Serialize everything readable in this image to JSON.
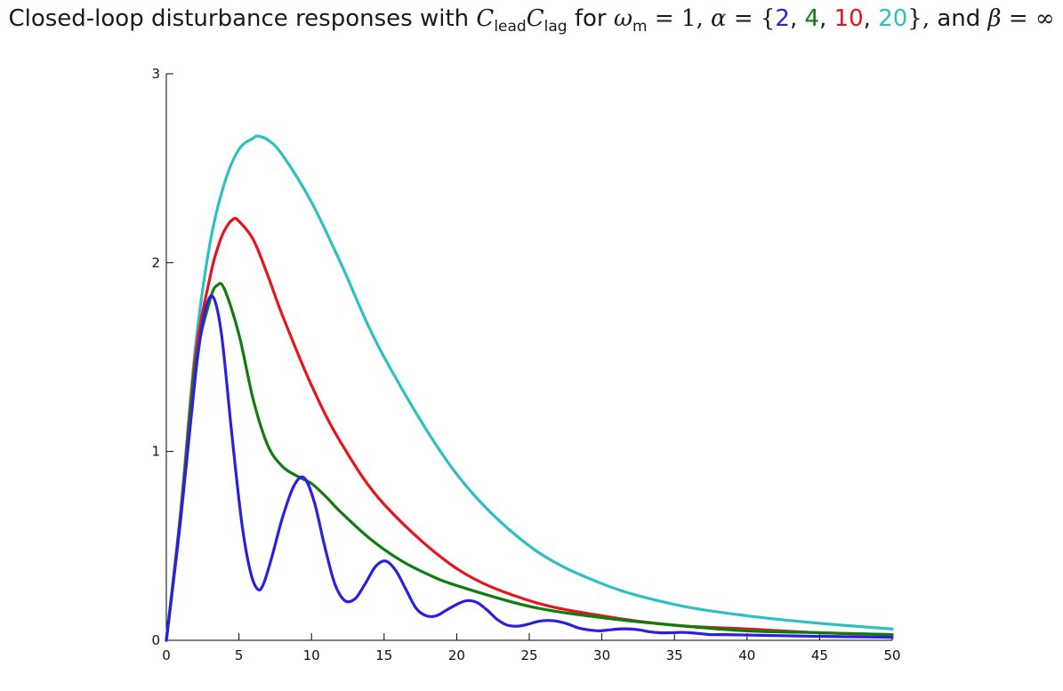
{
  "title": {
    "prefix": "Closed-loop disturbance responses with",
    "c_lead": "C",
    "c_lead_sub": "lead",
    "c_lag": "C",
    "c_lag_sub": "lag",
    "for_text": "for",
    "omega": "ω",
    "omega_sub": "m",
    "eq_one": "= 1,",
    "alpha": "α",
    "eq_brace": "= {",
    "alpha_values": [
      "2",
      "4",
      "10",
      "20"
    ],
    "close_brace": "},",
    "and_text": "and",
    "beta": "β",
    "eq_inf": "= ∞"
  },
  "colors": {
    "alpha2": "#2b1fe0",
    "alpha4": "#0e7d0e",
    "alpha10": "#e8141c",
    "alpha20": "#2ec0c0",
    "axis": "#000000"
  },
  "chart_data": {
    "type": "line",
    "xlim": [
      0,
      50
    ],
    "ylim": [
      0,
      3
    ],
    "x_ticks": [
      0,
      5,
      10,
      15,
      20,
      25,
      30,
      35,
      40,
      45,
      50
    ],
    "y_ticks": [
      0,
      1,
      2,
      3
    ],
    "grid": false,
    "xlabel": "",
    "ylabel": "",
    "series": [
      {
        "color": "#2ec0c0",
        "x": [
          0,
          1,
          2,
          3,
          4,
          5,
          6,
          6.3,
          7,
          8,
          10,
          12,
          15,
          20,
          25,
          30,
          35,
          40,
          45,
          50
        ],
        "y": [
          0,
          0.7,
          1.55,
          2.1,
          2.42,
          2.6,
          2.66,
          2.67,
          2.65,
          2.57,
          2.32,
          2.0,
          1.5,
          0.88,
          0.5,
          0.3,
          0.19,
          0.13,
          0.09,
          0.06
        ]
      },
      {
        "color": "#e8141c",
        "x": [
          0,
          1,
          2,
          3,
          3.5,
          4,
          4.6,
          5,
          6,
          7,
          8,
          10,
          12,
          15,
          20,
          25,
          30,
          35,
          40,
          45,
          50
        ],
        "y": [
          0,
          0.68,
          1.5,
          1.92,
          2.07,
          2.17,
          2.23,
          2.22,
          2.12,
          1.93,
          1.72,
          1.35,
          1.05,
          0.72,
          0.38,
          0.21,
          0.13,
          0.08,
          0.06,
          0.04,
          0.03
        ]
      },
      {
        "color": "#0e7d0e",
        "x": [
          0,
          1,
          2,
          3,
          3.5,
          4,
          5,
          6,
          7,
          8,
          9,
          10,
          11,
          12,
          14,
          16,
          18,
          20,
          25,
          30,
          35,
          40,
          45,
          50
        ],
        "y": [
          0,
          0.66,
          1.45,
          1.8,
          1.88,
          1.86,
          1.62,
          1.27,
          1.03,
          0.92,
          0.87,
          0.83,
          0.76,
          0.68,
          0.54,
          0.43,
          0.35,
          0.29,
          0.18,
          0.12,
          0.08,
          0.05,
          0.04,
          0.03
        ]
      },
      {
        "color": "#2b1fe0",
        "x": [
          0,
          1,
          2,
          2.6,
          3.2,
          3.8,
          4.5,
          5.2,
          5.8,
          6.3,
          6.7,
          7.3,
          8.0,
          8.8,
          9.5,
          10.2,
          10.9,
          11.6,
          12.3,
          13.0,
          13.7,
          14.4,
          15.1,
          15.8,
          16.5,
          17.2,
          17.9,
          18.6,
          19.3,
          20.0,
          20.7,
          21.4,
          22.1,
          22.8,
          23.5,
          24.2,
          24.9,
          25.6,
          26.3,
          27.0,
          27.7,
          28.4,
          29.1,
          29.8,
          30.5,
          31.2,
          31.9,
          32.6,
          33.3,
          34.0,
          34.7,
          35.4,
          36.1,
          36.8,
          37.5,
          38.5,
          40,
          42,
          44,
          46,
          48,
          50
        ],
        "y": [
          0,
          0.65,
          1.4,
          1.72,
          1.82,
          1.62,
          1.1,
          0.62,
          0.36,
          0.27,
          0.3,
          0.45,
          0.65,
          0.82,
          0.86,
          0.73,
          0.5,
          0.3,
          0.21,
          0.22,
          0.3,
          0.39,
          0.42,
          0.37,
          0.27,
          0.17,
          0.13,
          0.13,
          0.16,
          0.19,
          0.21,
          0.2,
          0.16,
          0.11,
          0.08,
          0.075,
          0.085,
          0.1,
          0.105,
          0.1,
          0.085,
          0.065,
          0.055,
          0.05,
          0.055,
          0.06,
          0.06,
          0.055,
          0.045,
          0.04,
          0.04,
          0.042,
          0.04,
          0.035,
          0.03,
          0.03,
          0.028,
          0.025,
          0.022,
          0.02,
          0.018,
          0.016
        ]
      }
    ]
  }
}
